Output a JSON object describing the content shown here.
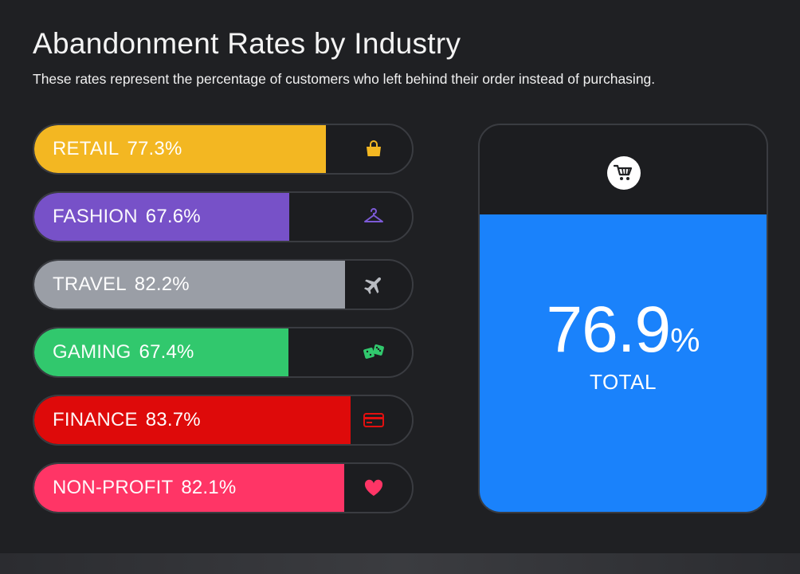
{
  "chart_data": {
    "type": "bar",
    "title": "Abandonment Rates by Industry",
    "subtitle": "These rates represent the percentage of customers who left behind their order instead of purchasing.",
    "unit": "%",
    "ylim": [
      0,
      100
    ],
    "series": [
      {
        "label": "RETAIL",
        "value": 77.3,
        "value_text": "77.3%",
        "color": "#f3b722",
        "icon": "shopping-bag-icon",
        "icon_color": "#f3b722"
      },
      {
        "label": "FASHION",
        "value": 67.6,
        "value_text": "67.6%",
        "color": "#7751c8",
        "icon": "hanger-icon",
        "icon_color": "#7c5ad6"
      },
      {
        "label": "TRAVEL",
        "value": 82.2,
        "value_text": "82.2%",
        "color": "#9a9ea6",
        "icon": "airplane-icon",
        "icon_color": "#b9bcc2"
      },
      {
        "label": "GAMING",
        "value": 67.4,
        "value_text": "67.4%",
        "color": "#31c86d",
        "icon": "dice-icon",
        "icon_color": "#31c86d"
      },
      {
        "label": "FINANCE",
        "value": 83.7,
        "value_text": "83.7%",
        "color": "#de0a0a",
        "icon": "credit-card-icon",
        "icon_color": "#e21010"
      },
      {
        "label": "NON-PROFIT",
        "value": 82.1,
        "value_text": "82.1%",
        "color": "#ff3566",
        "icon": "heart-icon",
        "icon_color": "#ff3566"
      }
    ],
    "total": {
      "value": 76.9,
      "number_text": "76.9",
      "unit_text": "%",
      "label": "TOTAL",
      "color": "#1a82fb",
      "icon": "shopping-cart-icon"
    }
  }
}
